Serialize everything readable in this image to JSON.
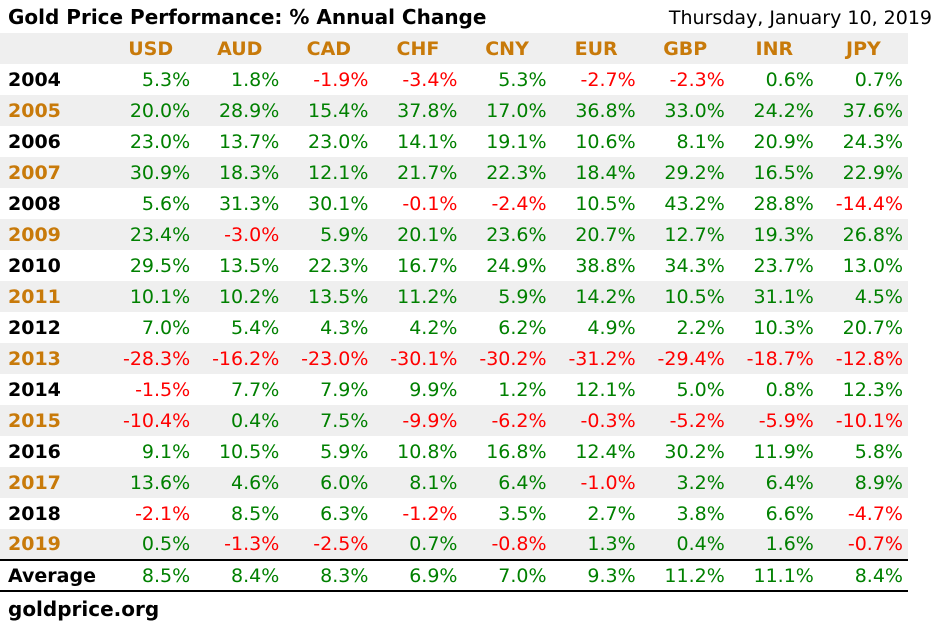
{
  "header": {
    "title": "Gold Price Performance: % Annual Change",
    "date": "Thursday, January 10, 2019"
  },
  "footer": {
    "source": "goldprice.org"
  },
  "colors": {
    "positive": "#008000",
    "negative": "#FF0000",
    "accent_orange": "#C87A0A",
    "stripe": "#EFEFEF",
    "text": "#000000"
  },
  "chart_data": {
    "type": "table",
    "title": "Gold Price Performance: % Annual Change",
    "columns": [
      "USD",
      "AUD",
      "CAD",
      "CHF",
      "CNY",
      "EUR",
      "GBP",
      "INR",
      "JPY"
    ],
    "rows": [
      {
        "label": "2004",
        "values": [
          "5.3%",
          "1.8%",
          "-1.9%",
          "-3.4%",
          "5.3%",
          "-2.7%",
          "-2.3%",
          "0.6%",
          "0.7%"
        ]
      },
      {
        "label": "2005",
        "values": [
          "20.0%",
          "28.9%",
          "15.4%",
          "37.8%",
          "17.0%",
          "36.8%",
          "33.0%",
          "24.2%",
          "37.6%"
        ]
      },
      {
        "label": "2006",
        "values": [
          "23.0%",
          "13.7%",
          "23.0%",
          "14.1%",
          "19.1%",
          "10.6%",
          "8.1%",
          "20.9%",
          "24.3%"
        ]
      },
      {
        "label": "2007",
        "values": [
          "30.9%",
          "18.3%",
          "12.1%",
          "21.7%",
          "22.3%",
          "18.4%",
          "29.2%",
          "16.5%",
          "22.9%"
        ]
      },
      {
        "label": "2008",
        "values": [
          "5.6%",
          "31.3%",
          "30.1%",
          "-0.1%",
          "-2.4%",
          "10.5%",
          "43.2%",
          "28.8%",
          "-14.4%"
        ]
      },
      {
        "label": "2009",
        "values": [
          "23.4%",
          "-3.0%",
          "5.9%",
          "20.1%",
          "23.6%",
          "20.7%",
          "12.7%",
          "19.3%",
          "26.8%"
        ]
      },
      {
        "label": "2010",
        "values": [
          "29.5%",
          "13.5%",
          "22.3%",
          "16.7%",
          "24.9%",
          "38.8%",
          "34.3%",
          "23.7%",
          "13.0%"
        ]
      },
      {
        "label": "2011",
        "values": [
          "10.1%",
          "10.2%",
          "13.5%",
          "11.2%",
          "5.9%",
          "14.2%",
          "10.5%",
          "31.1%",
          "4.5%"
        ]
      },
      {
        "label": "2012",
        "values": [
          "7.0%",
          "5.4%",
          "4.3%",
          "4.2%",
          "6.2%",
          "4.9%",
          "2.2%",
          "10.3%",
          "20.7%"
        ]
      },
      {
        "label": "2013",
        "values": [
          "-28.3%",
          "-16.2%",
          "-23.0%",
          "-30.1%",
          "-30.2%",
          "-31.2%",
          "-29.4%",
          "-18.7%",
          "-12.8%"
        ]
      },
      {
        "label": "2014",
        "values": [
          "-1.5%",
          "7.7%",
          "7.9%",
          "9.9%",
          "1.2%",
          "12.1%",
          "5.0%",
          "0.8%",
          "12.3%"
        ]
      },
      {
        "label": "2015",
        "values": [
          "-10.4%",
          "0.4%",
          "7.5%",
          "-9.9%",
          "-6.2%",
          "-0.3%",
          "-5.2%",
          "-5.9%",
          "-10.1%"
        ]
      },
      {
        "label": "2016",
        "values": [
          "9.1%",
          "10.5%",
          "5.9%",
          "10.8%",
          "16.8%",
          "12.4%",
          "30.2%",
          "11.9%",
          "5.8%"
        ]
      },
      {
        "label": "2017",
        "values": [
          "13.6%",
          "4.6%",
          "6.0%",
          "8.1%",
          "6.4%",
          "-1.0%",
          "3.2%",
          "6.4%",
          "8.9%"
        ]
      },
      {
        "label": "2018",
        "values": [
          "-2.1%",
          "8.5%",
          "6.3%",
          "-1.2%",
          "3.5%",
          "2.7%",
          "3.8%",
          "6.6%",
          "-4.7%"
        ]
      },
      {
        "label": "2019",
        "values": [
          "0.5%",
          "-1.3%",
          "-2.5%",
          "0.7%",
          "-0.8%",
          "1.3%",
          "0.4%",
          "1.6%",
          "-0.7%"
        ]
      },
      {
        "label": "Average",
        "values": [
          "8.5%",
          "8.4%",
          "8.3%",
          "6.9%",
          "7.0%",
          "9.3%",
          "11.2%",
          "11.1%",
          "8.4%"
        ]
      }
    ]
  }
}
